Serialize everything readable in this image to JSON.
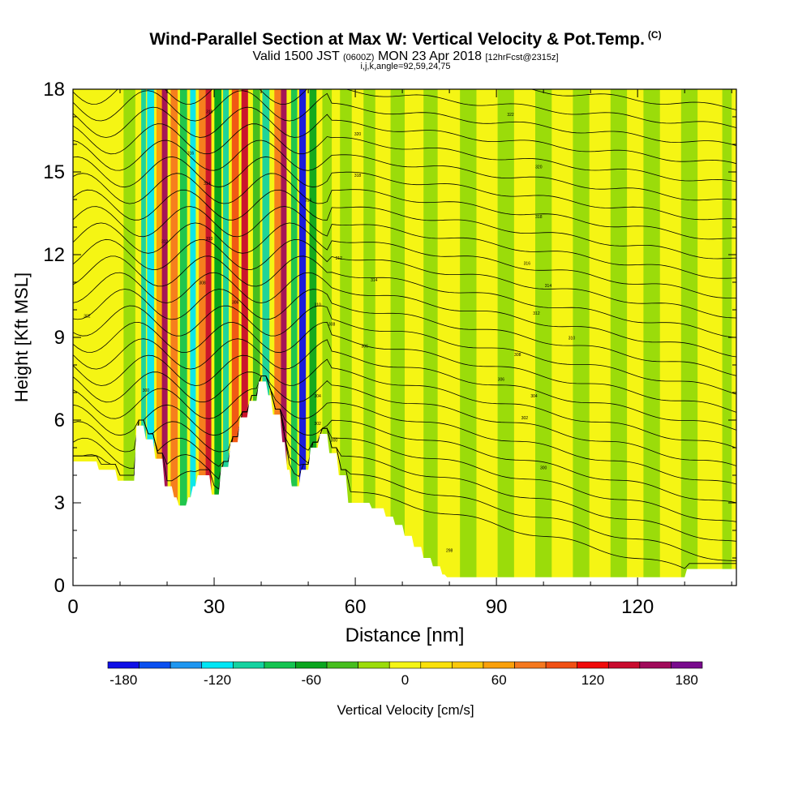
{
  "title": {
    "main": "Wind-Parallel Section at Max W: Vertical Velocity & Pot.Temp.",
    "copyright_mark": "(C)",
    "valid_prefix": "Valid 1500 JST",
    "valid_utc": "(0600Z)",
    "valid_date": "MON 23 Apr 2018",
    "forecast_info": "[12hrFcst@2315z]",
    "params": "i,j,k,angle=92,59,24,75"
  },
  "chart_data": {
    "type": "heatmap",
    "xlabel": "Distance [nm]",
    "ylabel": "Height [Kft MSL]",
    "xlim": [
      0,
      141
    ],
    "ylim": [
      0,
      18
    ],
    "x_ticks": [
      0,
      30,
      60,
      90,
      120
    ],
    "y_ticks": [
      0,
      3,
      6,
      9,
      12,
      15,
      18
    ],
    "terrain_kft": {
      "x": [
        0,
        5,
        5.5,
        9,
        9.5,
        13,
        13.5,
        15,
        15.5,
        17,
        17.5,
        19,
        19.5,
        21,
        21.5,
        22,
        22.5,
        24,
        24.5,
        25,
        25.5,
        26,
        26.5,
        29,
        29.5,
        31,
        31.5,
        33,
        33.5,
        35,
        35.5,
        37,
        37.5,
        39,
        39.5,
        41,
        41.5,
        42,
        42.5,
        44,
        44.5,
        45,
        45.5,
        46,
        46.5,
        48,
        48.5,
        50,
        50.5,
        52,
        52.5,
        54,
        54.5,
        56,
        56.5,
        58,
        58.5,
        63,
        63.5,
        66,
        66.5,
        68,
        68.5,
        70,
        70.5,
        72,
        72.5,
        74,
        74.5,
        76,
        76.5,
        78,
        78.5,
        79,
        79.5,
        127,
        127.5,
        130,
        130.5,
        141
      ],
      "y": [
        4.5,
        4.5,
        4.2,
        4.2,
        3.8,
        3.8,
        5.8,
        5.8,
        5.3,
        5.3,
        4.6,
        4.6,
        3.6,
        3.6,
        3.2,
        3.2,
        2.9,
        2.9,
        3.2,
        3.2,
        3.6,
        3.6,
        4.0,
        4.0,
        3.3,
        3.3,
        4.3,
        4.3,
        5.2,
        5.2,
        6.1,
        6.1,
        6.7,
        6.7,
        7.4,
        7.4,
        6.9,
        6.9,
        6.2,
        6.2,
        5.2,
        5.2,
        4.2,
        4.2,
        3.6,
        3.6,
        4.2,
        4.2,
        5.0,
        5.0,
        5.5,
        5.5,
        4.8,
        4.8,
        4.0,
        4.0,
        3.0,
        3.0,
        2.8,
        2.8,
        2.5,
        2.5,
        2.2,
        2.2,
        1.8,
        1.8,
        1.4,
        1.4,
        1.0,
        1.0,
        0.7,
        0.7,
        0.4,
        0.4,
        0.3,
        0.3,
        0.3,
        0.3,
        0.6,
        0.6,
        0.3,
        0.3
      ]
    },
    "colorbar": {
      "label": "Vertical Velocity [cm/s]",
      "min": -190,
      "max": 190,
      "step": 20,
      "tick_values": [
        -180,
        -120,
        -60,
        0,
        60,
        120,
        180
      ],
      "tick_labels": [
        "-180",
        "-120",
        "-60",
        "0",
        "60",
        "120",
        "180"
      ],
      "colors": [
        "#1010e6",
        "#0a50f0",
        "#1e96f0",
        "#00e6f5",
        "#14d2a0",
        "#14c350",
        "#0aa51e",
        "#46be1e",
        "#9bdc0a",
        "#f5f514",
        "#fae10a",
        "#fac80a",
        "#faa00a",
        "#f5781e",
        "#f05014",
        "#f00a0a",
        "#c80a2d",
        "#a00a5a",
        "#780a8c"
      ]
    },
    "velocity_bands": [
      {
        "x": 12,
        "w": 2.5,
        "v": -30
      },
      {
        "x": 15,
        "w": 1.0,
        "v": -100
      },
      {
        "x": 16.5,
        "w": 1.5,
        "v": -130
      },
      {
        "x": 18.5,
        "w": 1.5,
        "v": 60
      },
      {
        "x": 19.5,
        "w": 1.2,
        "v": 150
      },
      {
        "x": 21.5,
        "w": 1.5,
        "v": 70
      },
      {
        "x": 23.5,
        "w": 1.5,
        "v": -80
      },
      {
        "x": 25.5,
        "w": 1.2,
        "v": -120
      },
      {
        "x": 27.5,
        "w": 1.5,
        "v": 80
      },
      {
        "x": 28.8,
        "w": 1.2,
        "v": 140
      },
      {
        "x": 30.8,
        "w": 1.5,
        "v": -60
      },
      {
        "x": 32.5,
        "w": 1.2,
        "v": -110
      },
      {
        "x": 34.5,
        "w": 1.5,
        "v": 90
      },
      {
        "x": 36.5,
        "w": 1.4,
        "v": 130
      },
      {
        "x": 39,
        "w": 1.5,
        "v": -40
      },
      {
        "x": 41,
        "w": 1.5,
        "v": -110
      },
      {
        "x": 43.5,
        "w": 1.4,
        "v": 80
      },
      {
        "x": 44.8,
        "w": 1.2,
        "v": 150
      },
      {
        "x": 47,
        "w": 1.3,
        "v": -90
      },
      {
        "x": 48.8,
        "w": 1.4,
        "v": -175
      },
      {
        "x": 51,
        "w": 1.5,
        "v": -70
      },
      {
        "x": 54,
        "w": 2,
        "v": -20
      },
      {
        "x": 58,
        "w": 2.5,
        "v": -20
      },
      {
        "x": 63,
        "w": 2.5,
        "v": -30
      },
      {
        "x": 69,
        "w": 3,
        "v": -20
      },
      {
        "x": 76,
        "w": 3,
        "v": -20
      },
      {
        "x": 84,
        "w": 3.5,
        "v": -25
      },
      {
        "x": 92,
        "w": 3.5,
        "v": -20
      },
      {
        "x": 100,
        "w": 3.5,
        "v": -25
      },
      {
        "x": 108,
        "w": 3.5,
        "v": -20
      },
      {
        "x": 116,
        "w": 3.5,
        "v": -20
      },
      {
        "x": 123,
        "w": 3.5,
        "v": -20
      },
      {
        "x": 131,
        "w": 3.5,
        "v": -25
      },
      {
        "x": 139,
        "w": 2,
        "v": -20
      }
    ],
    "theta_contour_labels": [
      {
        "x": 3,
        "y": 9.8,
        "text": "302"
      },
      {
        "x": 15.5,
        "y": 7.1,
        "text": "300"
      },
      {
        "x": 29,
        "y": 17.2,
        "text": "318"
      },
      {
        "x": 25,
        "y": 15.7,
        "text": "316"
      },
      {
        "x": 28.5,
        "y": 14.6,
        "text": "314"
      },
      {
        "x": 19.5,
        "y": 12.5,
        "text": "312"
      },
      {
        "x": 29,
        "y": 12.6,
        "text": "310"
      },
      {
        "x": 27.5,
        "y": 11.0,
        "text": "308"
      },
      {
        "x": 34.5,
        "y": 10.3,
        "text": "306"
      },
      {
        "x": 50,
        "y": 14.0,
        "text": "316"
      },
      {
        "x": 56.5,
        "y": 11.9,
        "text": "312"
      },
      {
        "x": 52,
        "y": 10.2,
        "text": "310"
      },
      {
        "x": 55,
        "y": 9.5,
        "text": "308"
      },
      {
        "x": 62,
        "y": 8.7,
        "text": "306"
      },
      {
        "x": 52,
        "y": 6.9,
        "text": "304"
      },
      {
        "x": 52,
        "y": 5.9,
        "text": "302"
      },
      {
        "x": 55.5,
        "y": 5.3,
        "text": "300"
      },
      {
        "x": 60.5,
        "y": 16.4,
        "text": "320"
      },
      {
        "x": 60.5,
        "y": 14.9,
        "text": "318"
      },
      {
        "x": 64,
        "y": 11.1,
        "text": "314"
      },
      {
        "x": 93,
        "y": 17.1,
        "text": "322"
      },
      {
        "x": 99,
        "y": 15.2,
        "text": "320"
      },
      {
        "x": 99,
        "y": 13.4,
        "text": "318"
      },
      {
        "x": 96.5,
        "y": 11.7,
        "text": "316"
      },
      {
        "x": 101,
        "y": 10.9,
        "text": "314"
      },
      {
        "x": 98.5,
        "y": 9.9,
        "text": "312"
      },
      {
        "x": 106,
        "y": 9.0,
        "text": "310"
      },
      {
        "x": 94.5,
        "y": 8.4,
        "text": "308"
      },
      {
        "x": 91,
        "y": 7.5,
        "text": "306"
      },
      {
        "x": 98,
        "y": 6.9,
        "text": "304"
      },
      {
        "x": 96,
        "y": 6.1,
        "text": "302"
      },
      {
        "x": 100,
        "y": 4.3,
        "text": "300"
      },
      {
        "x": 80,
        "y": 1.3,
        "text": "298"
      }
    ]
  }
}
